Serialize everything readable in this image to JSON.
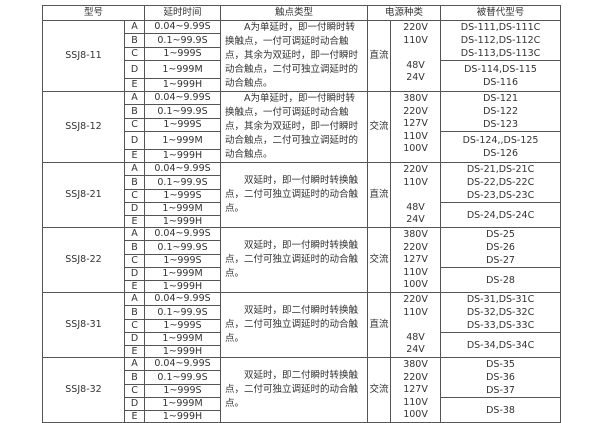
{
  "headers": [
    "型号",
    "延时时间",
    "触点类型",
    "电源种类",
    "被替代型号"
  ],
  "groups": [
    {
      "model": "SSJ8-11",
      "contact": "A为单延时，即一付瞬时转换触点，一付可调延时动合触点，其余为双延时，即一付瞬时动合触点，二付可独立调延时的动合触点。",
      "power": "直流",
      "volts": [
        "220V",
        "110V",
        "",
        "48V",
        "24V"
      ],
      "repl_top": [
        "DS-111,DS-111C",
        "DS-112,DS-112C",
        "DS-113,DS-113C"
      ],
      "repl_bottom": [
        "DS-114,DS-115",
        "DS-116"
      ]
    },
    {
      "model": "SSJ8-12",
      "contact": "A为单延时，即一付瞬时转换触点，一付可调延时动合触点，其余为双延时，即一付瞬时动合触点，二付可独立调延时的动合触点。",
      "power": "交流",
      "volts": [
        "380V",
        "220V",
        "127V",
        "110V",
        "100V"
      ],
      "repl_top": [
        "DS-121",
        "DS-122",
        "DS-123"
      ],
      "repl_bottom": [
        "DS-124,,DS-125",
        "DS-126"
      ]
    },
    {
      "model": "SSJ8-21",
      "contact": "双延时，即一付瞬时转换触点，二付可独立调延时的动合触点。",
      "power": "直流",
      "volts": [
        "220V",
        "110V",
        "",
        "48V",
        "24V"
      ],
      "repl_top": [
        "DS-21,DS-21C",
        "DS-22,DS-22C",
        "DS-23,DS-23C"
      ],
      "repl_bottom": [
        "DS-24,DS-24C"
      ]
    },
    {
      "model": "SSJ8-22",
      "contact": "双延时，即一付瞬时转换触点，二付可独立调延时的动合触点。",
      "power": "交流",
      "volts": [
        "380V",
        "220V",
        "127V",
        "110V",
        "100V"
      ],
      "repl_top": [
        "DS-25",
        "DS-26",
        "DS-27"
      ],
      "repl_bottom": [
        "DS-28"
      ]
    },
    {
      "model": "SSJ8-31",
      "contact": "双延时，即二付瞬时转换触点，二付可独立调延时的动合触点。",
      "power": "直流",
      "volts": [
        "220V",
        "110V",
        "",
        "48V",
        "24V"
      ],
      "repl_top": [
        "DS-31,DS-31C",
        "DS-32,DS-32C",
        "DS-33,DS-33C"
      ],
      "repl_bottom": [
        "DS-34,DS-34C"
      ]
    },
    {
      "model": "SSJ8-32",
      "contact": "双延时，即二付瞬时转换触点，二付可独立调延时的动合触点。",
      "power": "交流",
      "volts": [
        "380V",
        "220V",
        "127V",
        "110V",
        "100V"
      ],
      "repl_top": [
        "DS-35",
        "DS-36",
        "DS-37"
      ],
      "repl_bottom": [
        "DS-38"
      ]
    }
  ],
  "variants": [
    {
      "code": "A",
      "time": "0.04~9.99S"
    },
    {
      "code": "B",
      "time": "0.1~99.9S"
    },
    {
      "code": "C",
      "time": "1~999S"
    },
    {
      "code": "D",
      "time": "1~999M"
    },
    {
      "code": "E",
      "time": "1~999H"
    }
  ]
}
